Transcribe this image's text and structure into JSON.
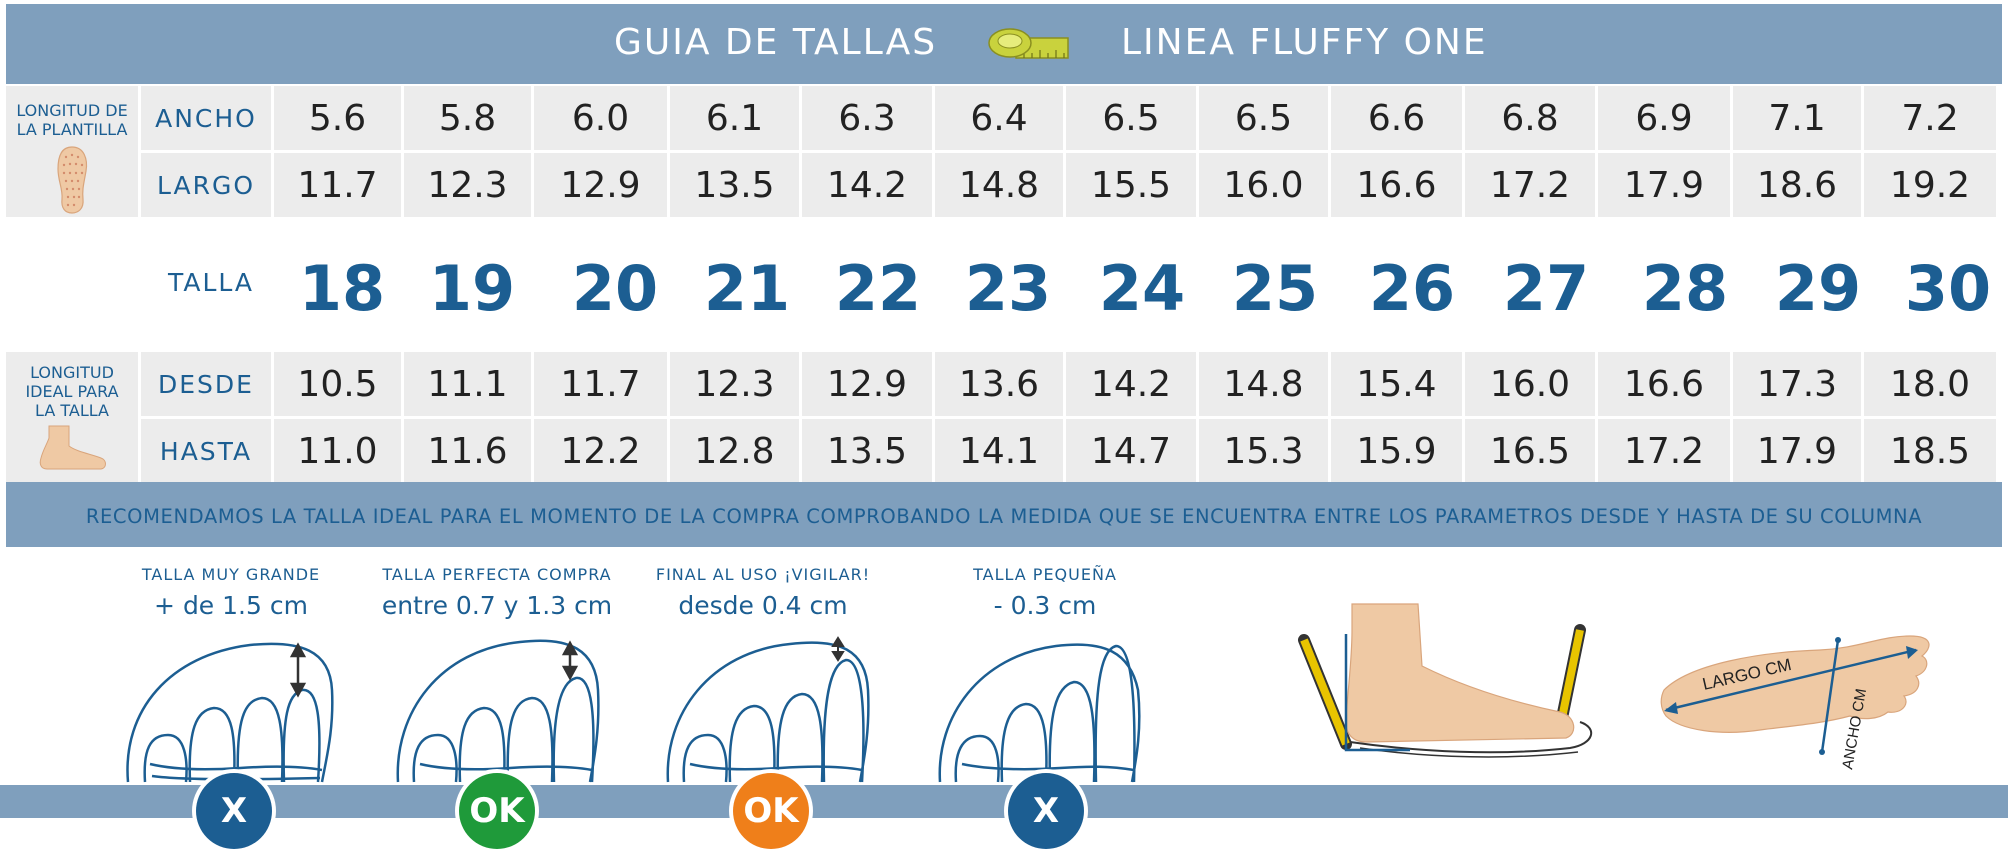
{
  "header": {
    "title_left": "GUIA DE TALLAS",
    "title_right": "LINEA FLUFFY ONE"
  },
  "insole": {
    "side_label": "LONGITUD DE LA PLANTILLA",
    "rows": [
      {
        "label": "ANCHO",
        "values": [
          "5.6",
          "5.8",
          "6.0",
          "6.1",
          "6.3",
          "6.4",
          "6.5",
          "6.5",
          "6.6",
          "6.8",
          "6.9",
          "7.1",
          "7.2"
        ]
      },
      {
        "label": "LARGO",
        "values": [
          "11.7",
          "12.3",
          "12.9",
          "13.5",
          "14.2",
          "14.8",
          "15.5",
          "16.0",
          "16.6",
          "17.2",
          "17.9",
          "18.6",
          "19.2"
        ]
      }
    ]
  },
  "talla": {
    "label": "TALLA",
    "values": [
      "18",
      "19",
      "20",
      "21",
      "22",
      "23",
      "24",
      "25",
      "26",
      "27",
      "28",
      "29",
      "30"
    ]
  },
  "ideal": {
    "side_label": "LONGITUD IDEAL PARA LA TALLA",
    "rows": [
      {
        "label": "DESDE",
        "values": [
          "10.5",
          "11.1",
          "11.7",
          "12.3",
          "12.9",
          "13.6",
          "14.2",
          "14.8",
          "15.4",
          "16.0",
          "16.6",
          "17.3",
          "18.0"
        ]
      },
      {
        "label": "HASTA",
        "values": [
          "11.0",
          "11.6",
          "12.2",
          "12.8",
          "13.5",
          "14.1",
          "14.7",
          "15.3",
          "15.9",
          "16.5",
          "17.2",
          "17.9",
          "18.5"
        ]
      }
    ]
  },
  "recommendation": "RECOMENDAMOS LA TALLA IDEAL PARA EL MOMENTO DE LA COMPRA COMPROBANDO LA MEDIDA QUE SE ENCUENTRA ENTRE LOS PARAMETROS DESDE Y HASTA DE SU COLUMNA",
  "fits": [
    {
      "title": "TALLA MUY GRANDE",
      "value": "+ de 1.5 cm",
      "badge": "X",
      "badge_color": "#1c5e92"
    },
    {
      "title": "TALLA PERFECTA COMPRA",
      "value": "entre 0.7 y 1.3 cm",
      "badge": "OK",
      "badge_color": "#1f9a3a"
    },
    {
      "title": "FINAL AL USO ¡VIGILAR!",
      "value": "desde 0.4 cm",
      "badge": "OK",
      "badge_color": "#ef7f1a"
    },
    {
      "title": "TALLA PEQUEÑA",
      "value": "- 0.3 cm",
      "badge": "X",
      "badge_color": "#1c5e92"
    }
  ],
  "measure_labels": {
    "largo": "LARGO CM",
    "ancho": "ANCHO CM"
  },
  "colors": {
    "header": "#7f9fbd",
    "text_blue": "#1c5e92",
    "cell": "#ececec",
    "skin": "#efc9a4"
  }
}
